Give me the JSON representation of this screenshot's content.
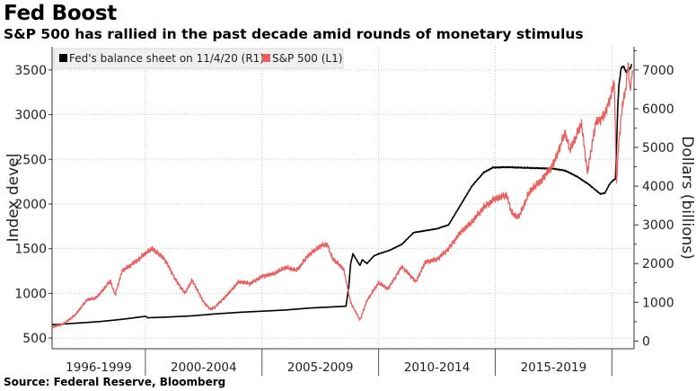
{
  "header": {
    "title": "Fed Boost",
    "subtitle": "S&P 500 has rallied in the past decade amid rounds of monetary stimulus"
  },
  "footer": {
    "source": "Source: Federal Reserve, Bloomberg"
  },
  "chart_data": {
    "type": "line",
    "xlim": [
      1996.0,
      2020.95
    ],
    "x_tick_boundaries": [
      2000,
      2005,
      2010,
      2015,
      2020
    ],
    "x_tick_labels": [
      {
        "label": "1996-1999",
        "center": 1998.0
      },
      {
        "label": "2000-2004",
        "center": 2002.5
      },
      {
        "label": "2005-2009",
        "center": 2007.5
      },
      {
        "label": "2010-2014",
        "center": 2012.5
      },
      {
        "label": "2015-2019",
        "center": 2017.5
      }
    ],
    "left_axis": {
      "label": "Index devel",
      "ylim": [
        380,
        3760
      ],
      "ticks": [
        500,
        1000,
        1500,
        2000,
        2500,
        3000,
        3500
      ]
    },
    "right_axis": {
      "label": "Dollars (billions)",
      "ylim": [
        -200,
        7600
      ],
      "ticks": [
        0,
        1000,
        2000,
        3000,
        4000,
        5000,
        6000,
        7000
      ]
    },
    "grid": true,
    "legend_position": "top-left",
    "series": [
      {
        "name": "Fed's balance sheet on 11/4/20 (R1)",
        "axis": "right",
        "color": "#000000",
        "points": [
          [
            1996.0,
            420
          ],
          [
            1997.0,
            460
          ],
          [
            1998.0,
            500
          ],
          [
            1999.0,
            560
          ],
          [
            1999.9,
            630
          ],
          [
            2000.0,
            640
          ],
          [
            2000.1,
            600
          ],
          [
            2001.0,
            620
          ],
          [
            2002.0,
            650
          ],
          [
            2003.0,
            700
          ],
          [
            2004.0,
            740
          ],
          [
            2005.0,
            770
          ],
          [
            2006.0,
            800
          ],
          [
            2007.0,
            850
          ],
          [
            2008.0,
            880
          ],
          [
            2008.6,
            900
          ],
          [
            2008.72,
            1400
          ],
          [
            2008.8,
            2000
          ],
          [
            2008.9,
            2250
          ],
          [
            2009.0,
            2150
          ],
          [
            2009.2,
            1950
          ],
          [
            2009.3,
            2100
          ],
          [
            2009.5,
            2000
          ],
          [
            2009.8,
            2200
          ],
          [
            2010.0,
            2250
          ],
          [
            2010.5,
            2350
          ],
          [
            2011.0,
            2500
          ],
          [
            2011.5,
            2800
          ],
          [
            2012.0,
            2850
          ],
          [
            2012.5,
            2900
          ],
          [
            2013.0,
            3000
          ],
          [
            2013.5,
            3500
          ],
          [
            2014.0,
            4000
          ],
          [
            2014.5,
            4350
          ],
          [
            2014.9,
            4480
          ],
          [
            2015.5,
            4490
          ],
          [
            2016.0,
            4480
          ],
          [
            2016.5,
            4470
          ],
          [
            2017.0,
            4460
          ],
          [
            2017.5,
            4450
          ],
          [
            2018.0,
            4400
          ],
          [
            2018.5,
            4250
          ],
          [
            2019.0,
            4050
          ],
          [
            2019.5,
            3800
          ],
          [
            2019.7,
            3820
          ],
          [
            2019.9,
            4050
          ],
          [
            2020.05,
            4150
          ],
          [
            2020.15,
            4180
          ],
          [
            2020.2,
            5000
          ],
          [
            2020.25,
            6000
          ],
          [
            2020.3,
            6600
          ],
          [
            2020.4,
            7050
          ],
          [
            2020.5,
            7100
          ],
          [
            2020.6,
            6950
          ],
          [
            2020.7,
            7000
          ],
          [
            2020.8,
            7050
          ],
          [
            2020.85,
            7150
          ]
        ]
      },
      {
        "name": "S&P 500  (L1)",
        "axis": "left",
        "color": "#e8605e",
        "points": [
          [
            1996.0,
            620
          ],
          [
            1996.5,
            660
          ],
          [
            1997.0,
            760
          ],
          [
            1997.5,
            930
          ],
          [
            1997.8,
            940
          ],
          [
            1998.0,
            980
          ],
          [
            1998.5,
            1140
          ],
          [
            1998.7,
            980
          ],
          [
            1999.0,
            1250
          ],
          [
            1999.5,
            1340
          ],
          [
            1999.8,
            1400
          ],
          [
            2000.0,
            1450
          ],
          [
            2000.3,
            1500
          ],
          [
            2000.8,
            1390
          ],
          [
            2001.0,
            1300
          ],
          [
            2001.3,
            1150
          ],
          [
            2001.7,
            1000
          ],
          [
            2002.0,
            1150
          ],
          [
            2002.5,
            900
          ],
          [
            2002.8,
            820
          ],
          [
            2003.0,
            850
          ],
          [
            2003.5,
            980
          ],
          [
            2004.0,
            1130
          ],
          [
            2004.5,
            1110
          ],
          [
            2005.0,
            1190
          ],
          [
            2005.5,
            1220
          ],
          [
            2006.0,
            1290
          ],
          [
            2006.5,
            1260
          ],
          [
            2007.0,
            1430
          ],
          [
            2007.5,
            1530
          ],
          [
            2007.8,
            1550
          ],
          [
            2008.0,
            1400
          ],
          [
            2008.5,
            1270
          ],
          [
            2008.8,
            900
          ],
          [
            2009.0,
            800
          ],
          [
            2009.2,
            700
          ],
          [
            2009.5,
            920
          ],
          [
            2010.0,
            1120
          ],
          [
            2010.4,
            1050
          ],
          [
            2011.0,
            1300
          ],
          [
            2011.6,
            1130
          ],
          [
            2012.0,
            1350
          ],
          [
            2012.5,
            1380
          ],
          [
            2013.0,
            1500
          ],
          [
            2013.5,
            1680
          ],
          [
            2014.0,
            1800
          ],
          [
            2014.5,
            1960
          ],
          [
            2015.0,
            2060
          ],
          [
            2015.5,
            2100
          ],
          [
            2015.7,
            1900
          ],
          [
            2016.0,
            1850
          ],
          [
            2016.5,
            2150
          ],
          [
            2017.0,
            2270
          ],
          [
            2017.5,
            2450
          ],
          [
            2018.0,
            2800
          ],
          [
            2018.2,
            2600
          ],
          [
            2018.7,
            2900
          ],
          [
            2018.95,
            2350
          ],
          [
            2019.3,
            2900
          ],
          [
            2019.7,
            3000
          ],
          [
            2020.0,
            3250
          ],
          [
            2020.1,
            3380
          ],
          [
            2020.2,
            2240
          ],
          [
            2020.3,
            2700
          ],
          [
            2020.45,
            3100
          ],
          [
            2020.6,
            3300
          ],
          [
            2020.7,
            3580
          ],
          [
            2020.78,
            3250
          ],
          [
            2020.88,
            3500
          ]
        ]
      }
    ]
  }
}
